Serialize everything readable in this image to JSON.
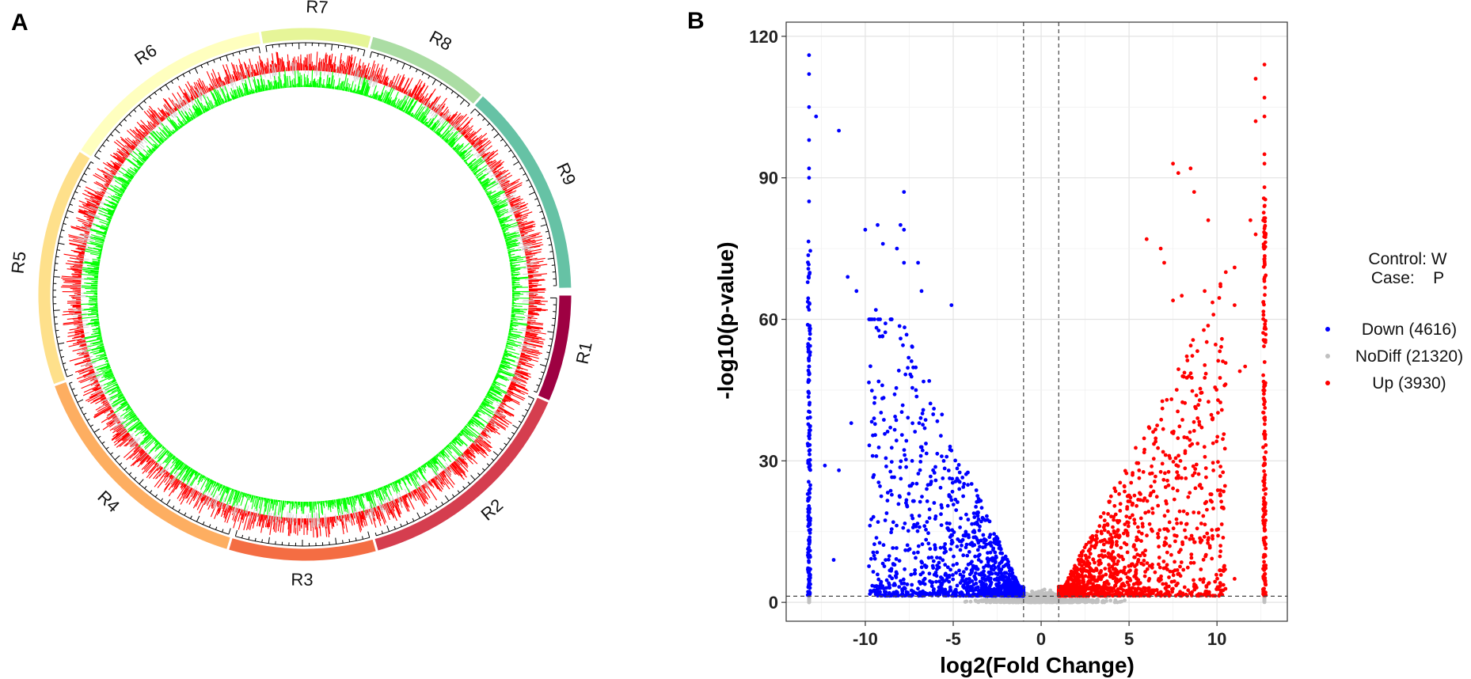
{
  "panels": {
    "a": "A",
    "b": "B"
  },
  "chart_data": [
    {
      "type": "circos",
      "panel": "A",
      "segments": [
        {
          "label": "R1",
          "color": "#9e0142",
          "start_deg": 90.0,
          "end_deg": 113.7
        },
        {
          "label": "R2",
          "color": "#d53e4f",
          "start_deg": 113.7,
          "end_deg": 164.3
        },
        {
          "label": "R3",
          "color": "#f46d43",
          "start_deg": 164.3,
          "end_deg": 196.8
        },
        {
          "label": "R4",
          "color": "#fdae61",
          "start_deg": 196.8,
          "end_deg": 250.1
        },
        {
          "label": "R5",
          "color": "#fee08b",
          "start_deg": 250.1,
          "end_deg": 302.6
        },
        {
          "label": "R6",
          "color": "#ffffbf",
          "start_deg": 302.6,
          "end_deg": 350.3
        },
        {
          "label": "R7",
          "color": "#e6f598",
          "start_deg": 350.3,
          "end_deg": 14.6
        },
        {
          "label": "R8",
          "color": "#abdda4",
          "start_deg": 14.6,
          "end_deg": 41.7
        },
        {
          "label": "R9",
          "color": "#66c2a5",
          "start_deg": 41.7,
          "end_deg": 88.8
        }
      ],
      "tracks": [
        {
          "name": "outer",
          "color": "#ff0000"
        },
        {
          "name": "inner",
          "color": "#00ff00"
        }
      ]
    },
    {
      "type": "scatter",
      "panel": "B",
      "title": "",
      "xlabel": "log2(Fold Change)",
      "ylabel": "-log10(p-value)",
      "xlim": [
        -14.5,
        14.0
      ],
      "ylim": [
        -4,
        123
      ],
      "xticks": [
        -10,
        -5,
        0,
        5,
        10
      ],
      "yticks": [
        0,
        30,
        60,
        90,
        120
      ],
      "threshold_lines": {
        "x": [
          -1,
          1
        ],
        "y": 1.3
      },
      "grid": true,
      "legend_position": "right",
      "legend_header": [
        "Control: W",
        "Case:    P"
      ],
      "series": [
        {
          "name": "Down (4616)",
          "color": "#0000ff",
          "count": 4616,
          "highlight_points": [
            [
              -13.2,
              116
            ],
            [
              -13.2,
              112
            ],
            [
              -13.2,
              105
            ],
            [
              -12.8,
              103
            ],
            [
              -13.2,
              98
            ],
            [
              -11.5,
              100
            ],
            [
              -13.2,
              92
            ],
            [
              -13.2,
              90
            ],
            [
              -13.2,
              85
            ],
            [
              -9.3,
              80
            ],
            [
              -10,
              79
            ],
            [
              -8,
              80
            ],
            [
              -7.8,
              79
            ],
            [
              -7.8,
              87
            ],
            [
              -9,
              76
            ],
            [
              -8.2,
              75
            ],
            [
              -7.8,
              72
            ],
            [
              -7,
              72
            ],
            [
              -11,
              69
            ],
            [
              -10.5,
              66
            ],
            [
              -6.8,
              66
            ],
            [
              -9.4,
              62
            ],
            [
              -8.5,
              60
            ],
            [
              -5.1,
              63
            ],
            [
              -12.3,
              29
            ],
            [
              -11.5,
              28
            ],
            [
              -10.8,
              38
            ],
            [
              -11.8,
              9
            ]
          ]
        },
        {
          "name": "NoDiff (21320)",
          "color": "#c0c0c0",
          "count": 21320
        },
        {
          "name": "Up (3930)",
          "color": "#ff0000",
          "count": 3930,
          "highlight_points": [
            [
              12.7,
              114
            ],
            [
              12.2,
              111
            ],
            [
              12.7,
              107
            ],
            [
              12.7,
              103
            ],
            [
              12.2,
              102
            ],
            [
              12.7,
              95
            ],
            [
              12.7,
              93
            ],
            [
              7.5,
              93
            ],
            [
              8.5,
              92
            ],
            [
              7.8,
              91
            ],
            [
              12.7,
              88
            ],
            [
              8.7,
              87
            ],
            [
              12.7,
              84
            ],
            [
              9.5,
              81
            ],
            [
              11.9,
              81
            ],
            [
              12.2,
              78
            ],
            [
              6,
              77
            ],
            [
              6.8,
              75
            ],
            [
              7,
              72
            ],
            [
              11,
              71
            ],
            [
              10.5,
              70
            ],
            [
              10.2,
              67
            ],
            [
              9.3,
              66
            ],
            [
              8,
              65
            ],
            [
              11,
              63
            ],
            [
              7.5,
              64
            ],
            [
              9.8,
              61
            ],
            [
              11.6,
              50
            ],
            [
              11.3,
              49
            ],
            [
              10.2,
              12
            ],
            [
              11,
              5
            ]
          ]
        }
      ]
    }
  ],
  "legend": {
    "control": "Control: W",
    "case": "Case:    P",
    "items": [
      {
        "label": "Down (4616)",
        "color": "#0000ff"
      },
      {
        "label": "NoDiff (21320)",
        "color": "#c0c0c0"
      },
      {
        "label": "Up (3930)",
        "color": "#ff0000"
      }
    ]
  }
}
